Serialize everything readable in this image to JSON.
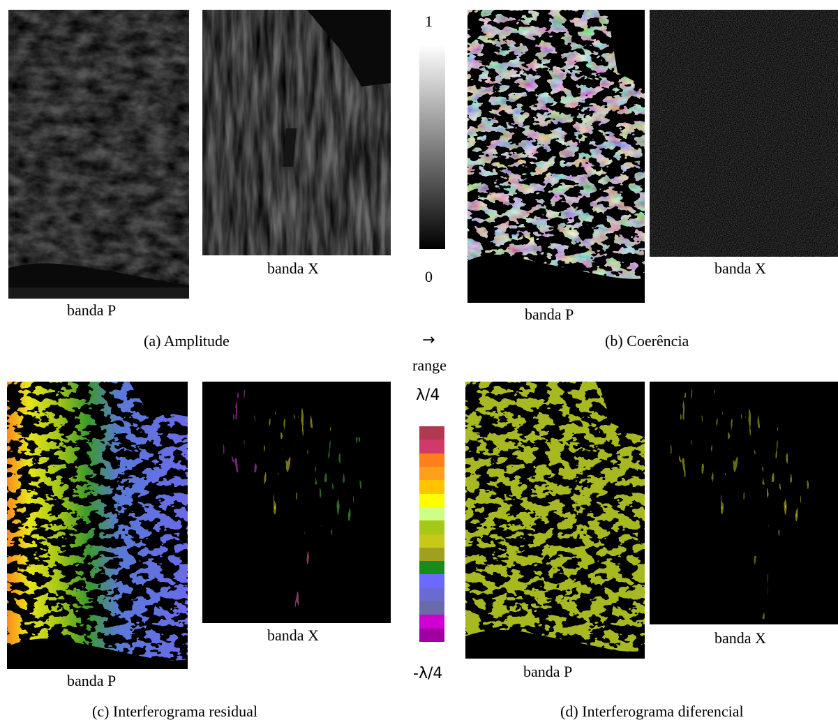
{
  "panels": {
    "a": {
      "caption": "(a) Amplitude",
      "p_label": "banda P",
      "x_label": "banda X"
    },
    "b": {
      "caption": "(b) Coerência",
      "p_label": "banda P",
      "x_label": "banda X"
    },
    "c": {
      "caption": "(c) Interferograma residual",
      "p_label": "banda P",
      "x_label": "banda X"
    },
    "d": {
      "caption": "(d) Interferograma diferencial",
      "p_label": "banda P",
      "x_label": "banda X"
    }
  },
  "grayscale_bar": {
    "max_label": "1",
    "min_label": "0"
  },
  "range_indicator": {
    "arrow": "→",
    "label": "range"
  },
  "phase_bar": {
    "max_label": "λ/4",
    "min_label": "-λ/4",
    "colors": [
      "#b03a50",
      "#d03a6a",
      "#ff7f1a",
      "#ffa01a",
      "#ffc400",
      "#ffff00",
      "#ccff88",
      "#a8c818",
      "#c8c818",
      "#a0a020",
      "#1a8a1a",
      "#6a6aff",
      "#6a6ad0",
      "#6a6aa8",
      "#d000d0",
      "#a000a0"
    ]
  }
}
